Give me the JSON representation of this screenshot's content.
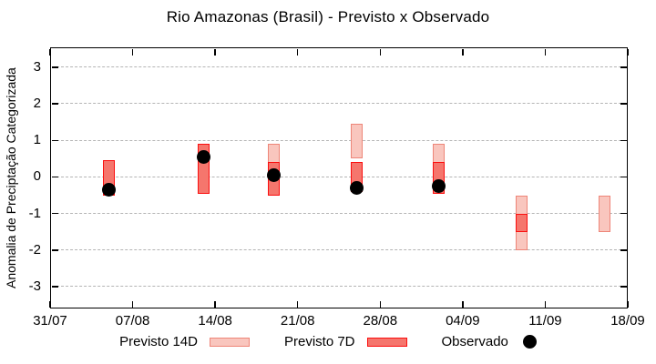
{
  "header": {
    "title": "Rio Amazonas (Brasil) - Previsto x Observado"
  },
  "colors": {
    "prev14_fill": "#f9c6be",
    "prev14_border": "#ee8578",
    "prev7_fill": "#f5766d",
    "prev7_border": "#fb0e0e",
    "observed": "#000000",
    "grid": "#b4b4b4"
  },
  "legend": [
    {
      "label": "Previsto 14D",
      "swatch": "box14"
    },
    {
      "label": "Previsto 7D",
      "swatch": "box7"
    },
    {
      "label": "Observado",
      "swatch": "dot"
    }
  ],
  "chart_data": {
    "type": "range-bar",
    "title": "Rio Amazonas (Brasil) - Previsto x Observado",
    "ylabel": "Anomalia de Preciptação Categorizada",
    "xlabel": "",
    "ylim": [
      -3.6,
      3.55
    ],
    "yticks": [
      3,
      2,
      1,
      0,
      -1,
      -2,
      -3
    ],
    "xtick_labels": [
      "31/07",
      "07/08",
      "14/08",
      "21/08",
      "28/08",
      "04/09",
      "11/09",
      "18/09"
    ],
    "xtick_days": [
      0,
      7,
      14,
      21,
      28,
      35,
      42,
      49
    ],
    "xlim_days": [
      0,
      49
    ],
    "grid": "horizontal-dashed",
    "legend_position": "bottom",
    "series_names": [
      "Previsto 14D",
      "Previsto 7D",
      "Observado"
    ],
    "points": [
      {
        "date": "05/08",
        "day": 5,
        "previsto_14d": [
          -0.5,
          0.45
        ],
        "previsto_7d": [
          -0.5,
          0.45
        ],
        "observado": -0.35
      },
      {
        "date": "13/08",
        "day": 13,
        "previsto_14d": [
          -0.45,
          0.9
        ],
        "previsto_7d": [
          -0.45,
          0.9
        ],
        "observado": 0.55
      },
      {
        "date": "19/08",
        "day": 19,
        "previsto_14d": [
          -0.5,
          0.9
        ],
        "previsto_7d": [
          -0.5,
          0.4
        ],
        "observado": 0.05
      },
      {
        "date": "26/08",
        "day": 26,
        "previsto_14d": [
          0.5,
          1.45
        ],
        "previsto_7d": [
          -0.4,
          0.4
        ],
        "observado": -0.3
      },
      {
        "date": "02/09",
        "day": 33,
        "previsto_14d": [
          -0.45,
          0.9
        ],
        "previsto_7d": [
          -0.45,
          0.4
        ],
        "observado": -0.25
      },
      {
        "date": "09/09",
        "day": 40,
        "previsto_14d": [
          -2.0,
          -0.5
        ],
        "previsto_7d": [
          -1.5,
          -1.0
        ],
        "observado": null
      },
      {
        "date": "16/09",
        "day": 47,
        "previsto_14d": [
          -1.5,
          -0.5
        ],
        "previsto_7d": null,
        "observado": null
      }
    ]
  }
}
